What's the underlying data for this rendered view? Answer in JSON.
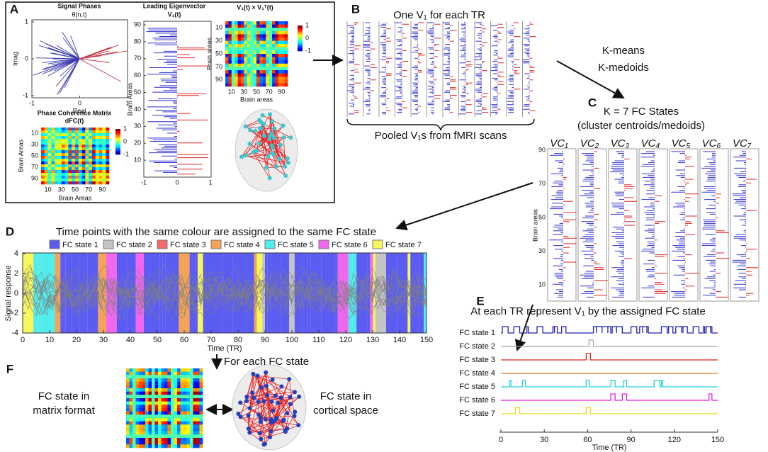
{
  "A": {
    "label": "A",
    "signal_phases": {
      "title": "Signal Phases",
      "annotation": "θ(n,t)",
      "xlabel": "Real",
      "ylabel": "Imag",
      "xticks": [
        -1,
        0,
        1
      ],
      "yticks": [
        -1,
        0,
        1
      ]
    },
    "eigenvector": {
      "title": "Leading Eigenvector",
      "subtitle": "V₁(t)",
      "ylabel": "Brain Areas",
      "yticks": [
        10,
        20,
        30,
        40,
        50,
        60,
        70,
        80,
        90
      ],
      "xticks": [
        -1,
        0,
        1
      ]
    },
    "outer_product": {
      "title": "V₁(t) × V₁ᵀ(t)",
      "xlabel": "Brain areas",
      "ticks": [
        10,
        30,
        50,
        70,
        90
      ],
      "colorbar": [
        1,
        0,
        -1
      ]
    },
    "coherence": {
      "title": "Phase Coherence Matrix",
      "subtitle": "dFC(t)",
      "xlabel": "Brain Areas",
      "ylabel": "Brain Areas",
      "ticks": [
        10,
        30,
        50,
        70,
        90
      ],
      "colorbar": [
        1,
        0,
        -1
      ]
    }
  },
  "B": {
    "label": "B",
    "title": "One V₁ for each TR",
    "caption": "Pooled V₁s from fMRI scans"
  },
  "clustering": [
    "K-means",
    "K-medoids"
  ],
  "C": {
    "label": "C",
    "title": "K = 7 FC States",
    "subtitle": "(cluster centroids/medoids)",
    "states": [
      "VC₁",
      "VC₂",
      "VC₃",
      "VC₄",
      "VC₅",
      "VC₆",
      "VC₇"
    ],
    "ylabel": "Brain areas",
    "yticks": [
      10,
      30,
      50,
      70,
      90
    ]
  },
  "D": {
    "label": "D",
    "title": "Time points with the same colour are assigned to the same FC state",
    "legend": [
      {
        "name": "FC state 1",
        "color": "#5b5cf2"
      },
      {
        "name": "FC state 2",
        "color": "#c4c4c4"
      },
      {
        "name": "FC state 3",
        "color": "#f46a6a"
      },
      {
        "name": "FC state 4",
        "color": "#f5a455"
      },
      {
        "name": "FC state 5",
        "color": "#52ecec"
      },
      {
        "name": "FC state 6",
        "color": "#f067f0"
      },
      {
        "name": "FC state 7",
        "color": "#f7f75c"
      }
    ],
    "ylabel": "Signal response",
    "xlabel": "Time (TR)",
    "xticks": [
      0,
      10,
      20,
      30,
      40,
      50,
      60,
      70,
      80,
      90,
      100,
      110,
      120,
      130,
      140,
      150
    ],
    "yticks": [
      -4,
      -2,
      0,
      2,
      4
    ]
  },
  "E": {
    "label": "E",
    "title": "At each TR represent V₁ by the assigned FC state",
    "series": [
      {
        "name": "FC state 1",
        "color": "#1e22b4"
      },
      {
        "name": "FC state 2",
        "color": "#a8a8a8"
      },
      {
        "name": "FC state 3",
        "color": "#e0201e"
      },
      {
        "name": "FC state 4",
        "color": "#f07d20"
      },
      {
        "name": "FC state 5",
        "color": "#22d2d2"
      },
      {
        "name": "FC state 6",
        "color": "#de22de"
      },
      {
        "name": "FC state 7",
        "color": "#e4dc1e"
      }
    ],
    "xticks": [
      0,
      30,
      60,
      90,
      120,
      150
    ],
    "xlabel": "Time (TR)"
  },
  "F": {
    "label": "F",
    "step": "For each FC state",
    "left": [
      "FC state in",
      "matrix format"
    ],
    "right": [
      "FC state in",
      "cortical space"
    ]
  }
}
